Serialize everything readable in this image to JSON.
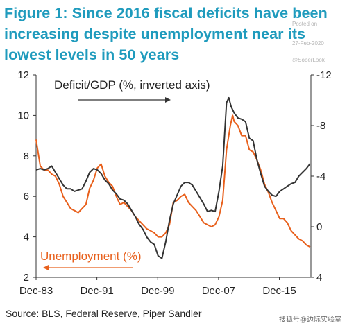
{
  "title": "Figure 1: Since 2016 fiscal deficits have been increasing despite unemployment near its lowest levels in 50 years",
  "watermark": {
    "posted_label": "Posted on",
    "date": "27-Feb-2020",
    "handle": "@SoberLook"
  },
  "source": "Source: BLS, Federal Reserve, Piper Sandler",
  "corner_mark": "搜狐号@边际实验室",
  "chart_data": {
    "type": "line",
    "x_ticks": [
      "Dec-83",
      "Dec-91",
      "Dec-99",
      "Dec-07",
      "Dec-15"
    ],
    "x_range": [
      1983.95,
      2020.1
    ],
    "left_axis": {
      "ylim": [
        2,
        12
      ],
      "ticks": [
        "12",
        "10",
        "8",
        "6",
        "4",
        "2"
      ]
    },
    "right_axis": {
      "ylim": [
        -12,
        4
      ],
      "inverted": true,
      "ticks": [
        "-12",
        "-8",
        "-4",
        "0",
        "4"
      ]
    },
    "annotations": [
      {
        "text": "Deficit/GDP (%, inverted axis)",
        "color": "#222222"
      },
      {
        "text": "Unemployment (%)",
        "color": "#e8601c"
      }
    ],
    "series": [
      {
        "name": "Unemployment (%)",
        "axis": "left",
        "color": "#e8601c",
        "x": [
          1983.95,
          1984.5,
          1985,
          1985.5,
          1986,
          1986.5,
          1987,
          1987.5,
          1988,
          1988.5,
          1989,
          1989.5,
          1990,
          1990.5,
          1991,
          1991.5,
          1992,
          1992.5,
          1993,
          1993.5,
          1994,
          1994.5,
          1995,
          1995.5,
          1996,
          1996.5,
          1997,
          1997.5,
          1998,
          1998.5,
          1999,
          1999.5,
          2000,
          2000.5,
          2001,
          2001.5,
          2002,
          2002.5,
          2003,
          2003.5,
          2004,
          2004.5,
          2005,
          2005.5,
          2006,
          2006.5,
          2007,
          2007.5,
          2008,
          2008.5,
          2009,
          2009.5,
          2009.8,
          2010,
          2010.5,
          2011,
          2011.5,
          2012,
          2012.5,
          2013,
          2013.5,
          2014,
          2014.5,
          2015,
          2015.5,
          2016,
          2016.5,
          2017,
          2017.5,
          2018,
          2018.5,
          2019,
          2019.5,
          2020
        ],
        "y": [
          8.8,
          7.5,
          7.3,
          7.3,
          7.1,
          7.0,
          6.6,
          6.0,
          5.7,
          5.4,
          5.3,
          5.2,
          5.4,
          5.6,
          6.4,
          6.8,
          7.4,
          7.6,
          7.0,
          6.7,
          6.5,
          6.0,
          5.6,
          5.7,
          5.5,
          5.3,
          5.0,
          4.8,
          4.6,
          4.4,
          4.3,
          4.2,
          4.0,
          4.0,
          4.2,
          4.6,
          5.7,
          5.8,
          6.0,
          6.1,
          5.7,
          5.5,
          5.3,
          5.0,
          4.7,
          4.6,
          4.5,
          4.6,
          5.0,
          5.8,
          8.3,
          9.5,
          10.0,
          9.7,
          9.5,
          9.0,
          9.0,
          8.3,
          8.2,
          7.8,
          7.3,
          6.6,
          6.2,
          5.7,
          5.3,
          4.9,
          4.9,
          4.7,
          4.3,
          4.1,
          3.9,
          3.8,
          3.6,
          3.5
        ]
      },
      {
        "name": "Deficit/GDP (%, inverted axis)",
        "axis": "right",
        "color": "#333333",
        "x": [
          1983.95,
          1984.5,
          1985,
          1985.5,
          1986,
          1986.5,
          1987,
          1987.5,
          1988,
          1988.5,
          1989,
          1989.5,
          1990,
          1990.5,
          1991,
          1991.5,
          1992,
          1992.5,
          1993,
          1993.5,
          1994,
          1994.5,
          1995,
          1995.5,
          1996,
          1996.5,
          1997,
          1997.5,
          1998,
          1998.5,
          1999,
          1999.5,
          2000,
          2000.5,
          2001,
          2001.5,
          2002,
          2002.5,
          2003,
          2003.5,
          2004,
          2004.5,
          2005,
          2005.5,
          2006,
          2006.5,
          2007,
          2007.5,
          2008,
          2008.5,
          2009,
          2009.3,
          2009.6,
          2010,
          2010.5,
          2011,
          2011.5,
          2012,
          2012.5,
          2013,
          2013.5,
          2014,
          2014.5,
          2015,
          2015.5,
          2016,
          2016.5,
          2017,
          2017.5,
          2018,
          2018.5,
          2019,
          2019.5,
          2020
        ],
        "y": [
          -4.5,
          -4.6,
          -4.5,
          -4.6,
          -4.8,
          -4.3,
          -3.8,
          -3.3,
          -3.0,
          -3.0,
          -2.8,
          -2.9,
          -3.0,
          -3.6,
          -4.3,
          -4.6,
          -4.5,
          -4.2,
          -3.7,
          -3.4,
          -2.9,
          -2.6,
          -2.2,
          -2.1,
          -1.8,
          -1.3,
          -0.8,
          -0.2,
          0.2,
          0.8,
          1.2,
          1.4,
          2.3,
          2.5,
          1.2,
          -0.5,
          -1.8,
          -2.5,
          -3.2,
          -3.5,
          -3.5,
          -3.3,
          -2.8,
          -2.3,
          -1.8,
          -1.2,
          -1.3,
          -1.2,
          -2.8,
          -4.8,
          -9.8,
          -10.2,
          -9.5,
          -9.0,
          -8.6,
          -8.5,
          -8.3,
          -7.0,
          -6.8,
          -5.3,
          -4.2,
          -3.2,
          -2.8,
          -2.5,
          -2.4,
          -2.8,
          -3.0,
          -3.2,
          -3.4,
          -3.5,
          -4.0,
          -4.3,
          -4.6,
          -5.0
        ]
      }
    ]
  }
}
